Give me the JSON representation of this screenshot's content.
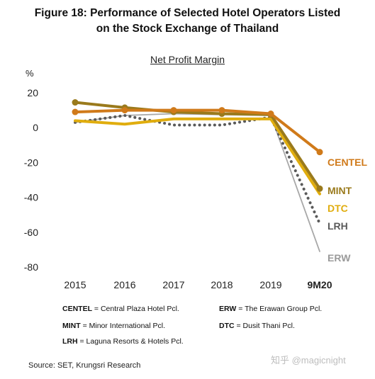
{
  "title_line1": "Figure 18: Performance of Selected Hotel Operators Listed",
  "title_line2": "on the Stock Exchange of Thailand",
  "chart_data": {
    "type": "line",
    "title": "Net Profit Margin",
    "ylabel": "%",
    "xlabel": "",
    "categories": [
      "2015",
      "2016",
      "2017",
      "2018",
      "2019",
      "9M20"
    ],
    "ylim": [
      -80,
      20
    ],
    "yticks": [
      20,
      0,
      -20,
      -40,
      -60,
      -80
    ],
    "grid": false,
    "series": [
      {
        "name": "CENTEL",
        "values": [
          9,
          10,
          10,
          10,
          8,
          -14
        ],
        "color": "#d07a1a",
        "style": "solid-marker"
      },
      {
        "name": "MINT",
        "values": [
          14.5,
          11.5,
          9,
          8,
          7.5,
          -35
        ],
        "color": "#9a7a1c",
        "style": "solid-marker"
      },
      {
        "name": "DTC",
        "values": [
          4,
          2,
          5,
          5,
          5,
          -38
        ],
        "color": "#e0ad0e",
        "style": "solid"
      },
      {
        "name": "LRH",
        "values": [
          3,
          7,
          1.5,
          1.5,
          6,
          -55
        ],
        "color": "#5a5a5a",
        "style": "dotted"
      },
      {
        "name": "ERW",
        "values": [
          3,
          7,
          8,
          7.5,
          7,
          -71
        ],
        "color": "#a8a8a8",
        "style": "thin"
      }
    ]
  },
  "legend": [
    {
      "abbr": "CENTEL",
      "text": " = Central Plaza Hotel Pcl."
    },
    {
      "abbr": "ERW",
      "text": " = The Erawan Group Pcl."
    },
    {
      "abbr": "MINT",
      "text": " = Minor International Pcl."
    },
    {
      "abbr": "DTC",
      "text": " = Dusit Thani Pcl."
    },
    {
      "abbr": "LRH",
      "text": " = Laguna Resorts & Hotels Pcl."
    }
  ],
  "source": "Source: SET, Krungsri Research",
  "watermark": "知乎 @magicnight"
}
